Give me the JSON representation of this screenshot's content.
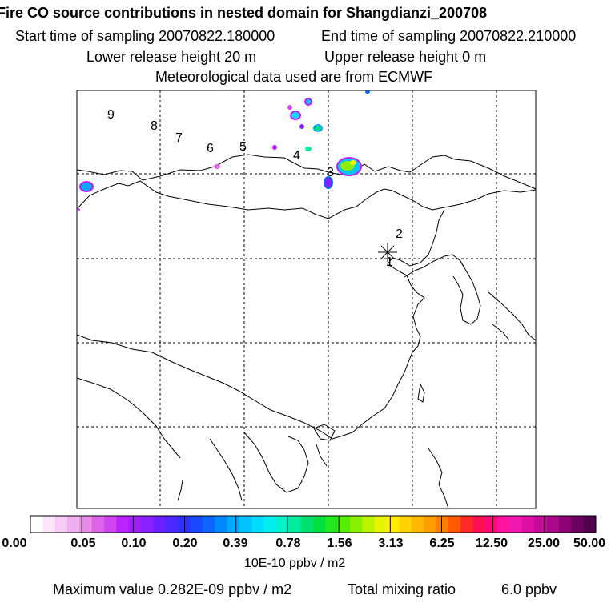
{
  "header": {
    "title": "Fire CO source contributions in nested domain for Shangdianzi_200708",
    "start_label": "Start time of sampling 20070822.180000",
    "end_label": "End time of sampling 20070822.210000",
    "lower_label": "Lower release height   20 m",
    "upper_label": "Upper release height    0 m",
    "met_label": "Meteorological data used are from ECMWF"
  },
  "trajectory_labels": [
    "9",
    "8",
    "7",
    "6",
    "5",
    "4",
    "3",
    "2",
    "1"
  ],
  "colorbar": {
    "ticks": [
      "0.00",
      "0.05",
      "0.10",
      "0.20",
      "0.39",
      "0.78",
      "1.56",
      "3.13",
      "6.25",
      "12.50",
      "25.00",
      "50.00"
    ],
    "colors": [
      "#ffffff",
      "#fbe6fb",
      "#f6ccf6",
      "#f0b0f0",
      "#e68ae6",
      "#dd66e8",
      "#d045f2",
      "#bb22ff",
      "#a01dff",
      "#8820ff",
      "#6a20ff",
      "#4a28ff",
      "#2e30ff",
      "#1848ff",
      "#0a66ff",
      "#0088ff",
      "#00a8ff",
      "#00c4ff",
      "#00dcff",
      "#00eeee",
      "#00f0c8",
      "#00ec9e",
      "#00e070",
      "#00e040",
      "#22e820",
      "#55ee00",
      "#88f000",
      "#bbf400",
      "#e8f400",
      "#ffee00",
      "#ffd400",
      "#ffba00",
      "#ffa000",
      "#ff8000",
      "#ff5a00",
      "#ff2a28",
      "#ff1050",
      "#ff0a78",
      "#ff14a0",
      "#f018b0",
      "#dd10a8",
      "#c40c98",
      "#aa0888",
      "#8c0474",
      "#6e0060",
      "#50004c"
    ],
    "unit_label": "10E-10 ppbv / m2"
  },
  "footer": {
    "max_label": "Maximum value  0.282E-09 ppbv / m2",
    "total_label": "Total mixing ratio",
    "total_value": "6.0 ppbv"
  }
}
